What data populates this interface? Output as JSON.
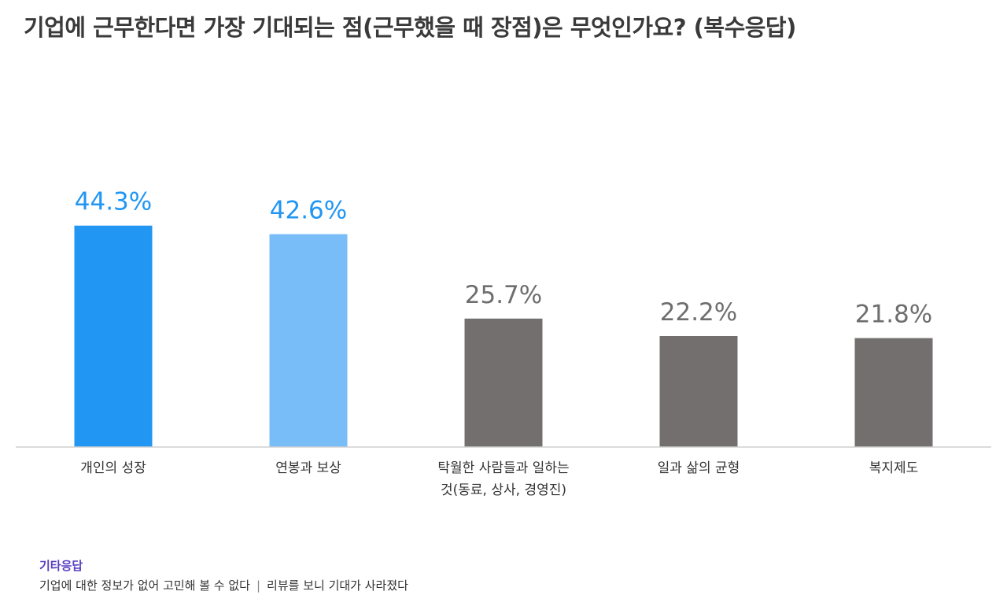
{
  "title": "기업에 근무한다면 가장 기대되는 점(근무했을 때 장점)은 무엇인가요? (복수응답)",
  "chart_data": {
    "type": "bar",
    "title": "기업에 근무한다면 가장 기대되는 점(근무했을 때 장점)은 무엇인가요? (복수응답)",
    "xlabel": "",
    "ylabel": "",
    "ylim": [
      0,
      55
    ],
    "grid": false,
    "legend": "none",
    "categories": [
      [
        "개인의 성장"
      ],
      [
        "연봉과 보상"
      ],
      [
        "탁월한 사람들과 일하는",
        "것(동료, 상사, 경영진)"
      ],
      [
        "일과 삶의 균형"
      ],
      [
        "복지제도"
      ]
    ],
    "values": [
      44.3,
      42.6,
      25.7,
      22.2,
      21.8
    ],
    "value_labels": [
      "44.3%",
      "42.6%",
      "25.7%",
      "22.2%",
      "21.8%"
    ],
    "bar_colors": [
      "#2196f3",
      "#78bdf8",
      "#736f6f",
      "#736f6f",
      "#736f6f"
    ],
    "label_colors": [
      "#2196f3",
      "#2196f3",
      "#6e6e6e",
      "#6e6e6e",
      "#6e6e6e"
    ]
  },
  "footer": {
    "others_title": "기타응답",
    "others": [
      "기업에 대한 정보가 없어 고민해 볼 수 없다",
      "리뷰를 보니 기대가 사라졌다"
    ],
    "separator": "|"
  }
}
